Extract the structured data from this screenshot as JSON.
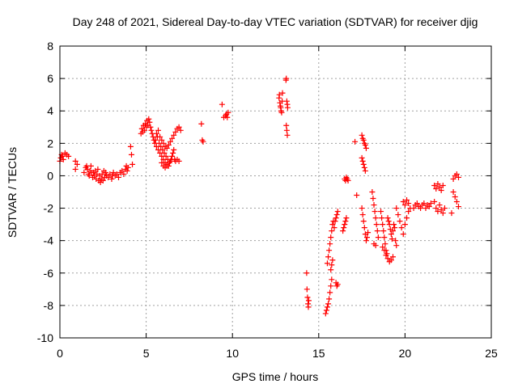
{
  "chart_data": {
    "type": "scatter",
    "title": "Day 248 of 2021, Sidereal Day-to-day VTEC variation (SDTVAR) for receiver djig",
    "xlabel": "GPS time / hours",
    "ylabel": "SDTVAR / TECUs",
    "xlim": [
      0,
      25
    ],
    "ylim": [
      -10,
      8
    ],
    "xticks": [
      0,
      5,
      10,
      15,
      20,
      25
    ],
    "yticks": [
      -10,
      -8,
      -6,
      -4,
      -2,
      0,
      2,
      4,
      6,
      8
    ],
    "grid": true,
    "marker": "plus",
    "color": "#ff0000",
    "series": [
      {
        "points": [
          [
            0.0,
            0.9
          ],
          [
            0.05,
            1.1
          ],
          [
            0.1,
            1.3
          ],
          [
            0.15,
            1.2
          ],
          [
            0.2,
            1.0
          ],
          [
            0.3,
            1.4
          ],
          [
            0.4,
            1.3
          ],
          [
            0.5,
            1.2
          ],
          [
            0.9,
            0.9
          ],
          [
            0.9,
            0.4
          ],
          [
            1.0,
            0.7
          ],
          [
            1.4,
            0.2
          ],
          [
            1.5,
            0.5
          ],
          [
            1.55,
            0.6
          ],
          [
            1.6,
            0.4
          ],
          [
            1.65,
            0.1
          ],
          [
            1.7,
            0.0
          ],
          [
            1.75,
            0.3
          ],
          [
            1.8,
            0.6
          ],
          [
            1.85,
            0.2
          ],
          [
            1.9,
            -0.1
          ],
          [
            1.95,
            0.2
          ],
          [
            2.0,
            0.0
          ],
          [
            2.05,
            0.3
          ],
          [
            2.1,
            -0.2
          ],
          [
            2.15,
            0.1
          ],
          [
            2.2,
            0.4
          ],
          [
            2.25,
            -0.3
          ],
          [
            2.3,
            0.0
          ],
          [
            2.35,
            -0.4
          ],
          [
            2.4,
            -0.2
          ],
          [
            2.45,
            0.1
          ],
          [
            2.5,
            -0.3
          ],
          [
            2.55,
            0.3
          ],
          [
            2.6,
            -0.1
          ],
          [
            2.65,
            0.2
          ],
          [
            2.7,
            0.0
          ],
          [
            2.8,
            -0.1
          ],
          [
            2.9,
            0.1
          ],
          [
            3.0,
            -0.2
          ],
          [
            3.05,
            0.0
          ],
          [
            3.1,
            0.2
          ],
          [
            3.2,
            0.0
          ],
          [
            3.3,
            0.1
          ],
          [
            3.4,
            -0.1
          ],
          [
            3.5,
            0.2
          ],
          [
            3.6,
            0.3
          ],
          [
            3.7,
            0.1
          ],
          [
            3.8,
            0.4
          ],
          [
            3.85,
            0.6
          ],
          [
            3.9,
            0.3
          ],
          [
            3.95,
            0.5
          ],
          [
            4.1,
            1.8
          ],
          [
            4.15,
            1.3
          ],
          [
            4.2,
            0.7
          ],
          [
            4.7,
            2.6
          ],
          [
            4.75,
            2.9
          ],
          [
            4.8,
            2.7
          ],
          [
            4.85,
            3.1
          ],
          [
            4.9,
            2.8
          ],
          [
            4.95,
            3.2
          ],
          [
            5.0,
            3.0
          ],
          [
            5.05,
            3.4
          ],
          [
            5.1,
            3.1
          ],
          [
            5.15,
            3.5
          ],
          [
            5.2,
            3.3
          ],
          [
            5.25,
            3.0
          ],
          [
            5.3,
            2.8
          ],
          [
            5.35,
            2.6
          ],
          [
            5.4,
            2.4
          ],
          [
            5.45,
            2.2
          ],
          [
            5.5,
            2.0
          ],
          [
            5.55,
            2.2
          ],
          [
            5.6,
            1.8
          ],
          [
            5.65,
            2.4
          ],
          [
            5.7,
            1.6
          ],
          [
            5.75,
            2.0
          ],
          [
            5.8,
            1.4
          ],
          [
            5.85,
            1.8
          ],
          [
            5.9,
            1.2
          ],
          [
            5.95,
            1.6
          ],
          [
            6.0,
            1.0
          ],
          [
            6.05,
            1.4
          ],
          [
            6.1,
            0.8
          ],
          [
            6.15,
            1.2
          ],
          [
            6.2,
            0.6
          ],
          [
            6.25,
            1.0
          ],
          [
            6.3,
            0.6
          ],
          [
            6.35,
            0.8
          ],
          [
            6.4,
            0.9
          ],
          [
            6.45,
            1.0
          ],
          [
            6.5,
            1.2
          ],
          [
            6.55,
            1.4
          ],
          [
            6.6,
            1.6
          ],
          [
            6.65,
            1.0
          ],
          [
            6.7,
            0.9
          ],
          [
            6.8,
            1.0
          ],
          [
            6.9,
            0.9
          ],
          [
            5.6,
            2.6
          ],
          [
            5.7,
            2.8
          ],
          [
            5.8,
            2.4
          ],
          [
            5.9,
            2.2
          ],
          [
            6.0,
            2.0
          ],
          [
            6.1,
            1.8
          ],
          [
            6.2,
            1.7
          ],
          [
            6.3,
            1.9
          ],
          [
            6.4,
            2.1
          ],
          [
            6.5,
            2.3
          ],
          [
            6.6,
            2.5
          ],
          [
            6.7,
            2.7
          ],
          [
            6.8,
            2.9
          ],
          [
            6.9,
            3.0
          ],
          [
            7.0,
            2.8
          ],
          [
            5.9,
            0.8
          ],
          [
            6.0,
            0.6
          ],
          [
            6.1,
            0.5
          ],
          [
            6.2,
            0.7
          ],
          [
            8.2,
            3.2
          ],
          [
            8.25,
            2.2
          ],
          [
            8.3,
            2.1
          ],
          [
            9.4,
            4.4
          ],
          [
            9.5,
            3.6
          ],
          [
            9.6,
            3.7
          ],
          [
            9.65,
            3.8
          ],
          [
            9.7,
            3.6
          ],
          [
            9.75,
            3.9
          ],
          [
            12.7,
            4.8
          ],
          [
            12.72,
            5.0
          ],
          [
            12.75,
            4.5
          ],
          [
            12.78,
            4.3
          ],
          [
            12.8,
            4.2
          ],
          [
            12.82,
            4.0
          ],
          [
            12.85,
            3.9
          ],
          [
            12.88,
            4.6
          ],
          [
            12.9,
            5.1
          ],
          [
            13.1,
            5.9
          ],
          [
            13.12,
            6.0
          ],
          [
            13.15,
            4.6
          ],
          [
            13.18,
            4.4
          ],
          [
            13.2,
            4.2
          ],
          [
            13.12,
            3.1
          ],
          [
            13.15,
            2.8
          ],
          [
            13.18,
            2.5
          ],
          [
            14.3,
            -6.0
          ],
          [
            14.32,
            -7.0
          ],
          [
            14.35,
            -7.5
          ],
          [
            14.38,
            -7.9
          ],
          [
            14.4,
            -8.1
          ],
          [
            14.42,
            -7.7
          ],
          [
            15.4,
            -8.5
          ],
          [
            15.45,
            -8.3
          ],
          [
            15.5,
            -8.1
          ],
          [
            15.55,
            -7.9
          ],
          [
            15.6,
            -7.6
          ],
          [
            15.65,
            -7.2
          ],
          [
            15.7,
            -6.8
          ],
          [
            15.75,
            -6.4
          ],
          [
            15.5,
            -5.4
          ],
          [
            15.55,
            -5.0
          ],
          [
            15.6,
            -4.6
          ],
          [
            15.65,
            -4.2
          ],
          [
            15.7,
            -3.8
          ],
          [
            15.75,
            -3.4
          ],
          [
            15.8,
            -3.0
          ],
          [
            15.85,
            -2.8
          ],
          [
            15.7,
            -5.8
          ],
          [
            15.75,
            -5.5
          ],
          [
            15.8,
            -5.2
          ],
          [
            15.9,
            -3.2
          ],
          [
            15.95,
            -2.8
          ],
          [
            16.0,
            -2.6
          ],
          [
            16.05,
            -2.4
          ],
          [
            16.1,
            -2.2
          ],
          [
            16.0,
            -6.6
          ],
          [
            16.05,
            -6.8
          ],
          [
            16.1,
            -6.7
          ],
          [
            16.4,
            -3.4
          ],
          [
            16.45,
            -3.2
          ],
          [
            16.5,
            -3.0
          ],
          [
            16.55,
            -2.8
          ],
          [
            16.6,
            -2.6
          ],
          [
            16.5,
            -0.2
          ],
          [
            16.55,
            -0.3
          ],
          [
            16.6,
            -0.1
          ],
          [
            16.65,
            -0.2
          ],
          [
            16.7,
            -0.3
          ],
          [
            17.1,
            2.1
          ],
          [
            17.2,
            -1.2
          ],
          [
            17.5,
            2.5
          ],
          [
            17.55,
            2.3
          ],
          [
            17.6,
            2.2
          ],
          [
            17.65,
            2.0
          ],
          [
            17.7,
            1.9
          ],
          [
            17.75,
            1.7
          ],
          [
            17.5,
            1.1
          ],
          [
            17.55,
            0.9
          ],
          [
            17.6,
            0.7
          ],
          [
            17.65,
            0.5
          ],
          [
            17.7,
            0.3
          ],
          [
            17.5,
            -2.0
          ],
          [
            17.55,
            -2.4
          ],
          [
            17.6,
            -2.8
          ],
          [
            17.65,
            -3.2
          ],
          [
            17.7,
            -3.6
          ],
          [
            17.75,
            -4.0
          ],
          [
            17.8,
            -3.8
          ],
          [
            17.85,
            -3.5
          ],
          [
            18.1,
            -1.0
          ],
          [
            18.15,
            -1.4
          ],
          [
            18.2,
            -1.8
          ],
          [
            18.25,
            -2.2
          ],
          [
            18.3,
            -2.6
          ],
          [
            18.35,
            -3.0
          ],
          [
            18.4,
            -3.4
          ],
          [
            18.45,
            -3.8
          ],
          [
            18.2,
            -4.2
          ],
          [
            18.3,
            -4.3
          ],
          [
            18.6,
            -2.2
          ],
          [
            18.65,
            -2.6
          ],
          [
            18.7,
            -3.0
          ],
          [
            18.75,
            -3.4
          ],
          [
            18.8,
            -3.8
          ],
          [
            18.85,
            -4.2
          ],
          [
            18.9,
            -4.6
          ],
          [
            18.95,
            -4.8
          ],
          [
            18.7,
            -4.4
          ],
          [
            18.8,
            -4.6
          ],
          [
            18.9,
            -4.9
          ],
          [
            19.0,
            -5.1
          ],
          [
            19.1,
            -5.3
          ],
          [
            19.2,
            -5.2
          ],
          [
            19.3,
            -5.0
          ],
          [
            19.0,
            -2.6
          ],
          [
            19.05,
            -2.8
          ],
          [
            19.1,
            -3.0
          ],
          [
            19.15,
            -3.3
          ],
          [
            19.2,
            -3.6
          ],
          [
            19.25,
            -3.9
          ],
          [
            19.3,
            -3.4
          ],
          [
            19.35,
            -3.0
          ],
          [
            19.4,
            -3.2
          ],
          [
            19.45,
            -4.0
          ],
          [
            19.5,
            -4.3
          ],
          [
            19.5,
            -2.0
          ],
          [
            19.6,
            -2.4
          ],
          [
            19.7,
            -2.8
          ],
          [
            19.8,
            -3.2
          ],
          [
            19.9,
            -3.6
          ],
          [
            20.0,
            -3.0
          ],
          [
            20.1,
            -2.6
          ],
          [
            20.2,
            -2.2
          ],
          [
            20.3,
            -2.0
          ],
          [
            19.9,
            -1.6
          ],
          [
            20.0,
            -1.8
          ],
          [
            20.1,
            -1.5
          ],
          [
            20.2,
            -1.7
          ],
          [
            20.5,
            -2.0
          ],
          [
            20.6,
            -1.8
          ],
          [
            20.7,
            -1.7
          ],
          [
            20.8,
            -1.9
          ],
          [
            20.9,
            -2.0
          ],
          [
            21.0,
            -1.8
          ],
          [
            21.1,
            -1.7
          ],
          [
            21.2,
            -2.0
          ],
          [
            21.3,
            -1.8
          ],
          [
            21.4,
            -1.9
          ],
          [
            21.5,
            -1.7
          ],
          [
            21.7,
            -0.6
          ],
          [
            21.8,
            -0.8
          ],
          [
            21.9,
            -0.5
          ],
          [
            22.0,
            -0.7
          ],
          [
            22.1,
            -0.9
          ],
          [
            22.2,
            -0.6
          ],
          [
            21.7,
            -1.6
          ],
          [
            21.8,
            -2.0
          ],
          [
            21.9,
            -2.2
          ],
          [
            22.0,
            -1.8
          ],
          [
            22.1,
            -2.1
          ],
          [
            22.2,
            -2.3
          ],
          [
            22.3,
            -2.0
          ],
          [
            22.7,
            -2.3
          ],
          [
            22.8,
            -1.0
          ],
          [
            22.9,
            -1.3
          ],
          [
            23.0,
            -1.6
          ],
          [
            23.1,
            -1.9
          ],
          [
            22.8,
            -0.2
          ],
          [
            22.9,
            0.0
          ],
          [
            23.0,
            0.1
          ],
          [
            23.1,
            -0.1
          ]
        ]
      }
    ]
  }
}
